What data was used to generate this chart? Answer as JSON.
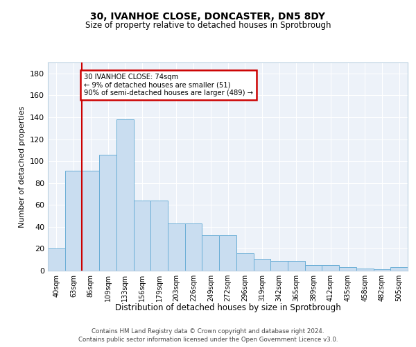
{
  "title1": "30, IVANHOE CLOSE, DONCASTER, DN5 8DY",
  "title2": "Size of property relative to detached houses in Sprotbrough",
  "xlabel": "Distribution of detached houses by size in Sprotbrough",
  "ylabel": "Number of detached properties",
  "bar_labels": [
    "40sqm",
    "63sqm",
    "86sqm",
    "109sqm",
    "133sqm",
    "156sqm",
    "179sqm",
    "203sqm",
    "226sqm",
    "249sqm",
    "272sqm",
    "296sqm",
    "319sqm",
    "342sqm",
    "365sqm",
    "389sqm",
    "412sqm",
    "435sqm",
    "458sqm",
    "482sqm",
    "505sqm"
  ],
  "bar_values": [
    20,
    91,
    91,
    106,
    138,
    64,
    64,
    43,
    43,
    32,
    32,
    16,
    11,
    9,
    9,
    5,
    5,
    3,
    2,
    1,
    3
  ],
  "ylim": [
    0,
    190
  ],
  "yticks": [
    0,
    20,
    40,
    60,
    80,
    100,
    120,
    140,
    160,
    180
  ],
  "bar_color": "#c9ddf0",
  "bar_edge_color": "#6aaed6",
  "vline_color": "#cc0000",
  "annotation_text": "30 IVANHOE CLOSE: 74sqm\n← 9% of detached houses are smaller (51)\n90% of semi-detached houses are larger (489) →",
  "annotation_box_color": "white",
  "annotation_box_edge": "#cc0000",
  "footer1": "Contains HM Land Registry data © Crown copyright and database right 2024.",
  "footer2": "Contains public sector information licensed under the Open Government Licence v3.0.",
  "bg_color": "#edf2f9",
  "grid_color": "#ffffff"
}
